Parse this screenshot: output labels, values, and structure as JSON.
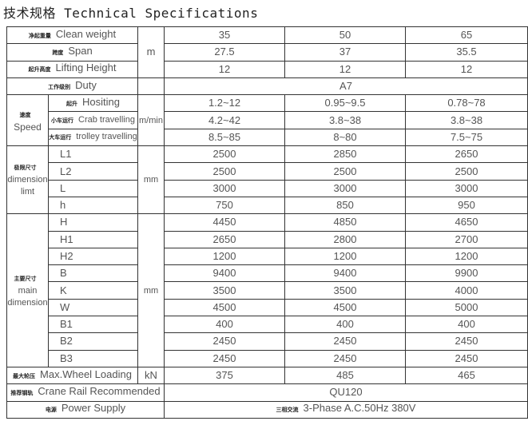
{
  "title": "技术规格 Technical Specifications",
  "cols": [
    "35",
    "50",
    "65"
  ],
  "rows": {
    "clean_weight": {
      "cn": "净起重量",
      "en": "Clean weight",
      "unit": "m",
      "v": [
        "35",
        "50",
        "65"
      ]
    },
    "span": {
      "cn": "跨度",
      "en": "Span",
      "v": [
        "27.5",
        "37",
        "35.5"
      ]
    },
    "lifting_height": {
      "cn": "起升高度",
      "en": "Lifting Height",
      "v": [
        "12",
        "12",
        "12"
      ]
    },
    "duty": {
      "cn": "工作级别",
      "en": "Duty",
      "v": "A7"
    },
    "speed": {
      "cn": "速度",
      "en": "Speed",
      "unit": "m/min",
      "items": [
        {
          "cn": "起升",
          "en": "Hositing",
          "v": [
            "1.2~12",
            "0.95~9.5",
            "0.78~78"
          ]
        },
        {
          "cn": "小车运行",
          "en": "Crab travelling",
          "v": [
            "4.2~42",
            "3.8~38",
            "3.8~38"
          ]
        },
        {
          "cn": "大车运行",
          "en": "trolley travelling",
          "v": [
            "8.5~85",
            "8~80",
            "7.5~75"
          ]
        }
      ]
    },
    "dim_limit": {
      "cn": "极限尺寸",
      "en1": "dimension",
      "en2": "limt",
      "unit": "mm",
      "items": [
        {
          "en": "L1",
          "v": [
            "2500",
            "2850",
            "2650"
          ]
        },
        {
          "en": "L2",
          "v": [
            "2500",
            "2500",
            "2500"
          ]
        },
        {
          "en": "L",
          "v": [
            "3000",
            "3000",
            "3000"
          ]
        },
        {
          "en": "h",
          "v": [
            "750",
            "850",
            "950"
          ]
        }
      ]
    },
    "main_dim": {
      "cn": "主要尺寸",
      "en1": "main",
      "en2": "dimension",
      "unit": "mm",
      "items": [
        {
          "en": "H",
          "v": [
            "4450",
            "4850",
            "4650"
          ]
        },
        {
          "en": "H1",
          "v": [
            "2650",
            "2800",
            "2700"
          ]
        },
        {
          "en": "H2",
          "v": [
            "1200",
            "1200",
            "1200"
          ]
        },
        {
          "en": "B",
          "v": [
            "9400",
            "9400",
            "9900"
          ]
        },
        {
          "en": "K",
          "v": [
            "3500",
            "3500",
            "4000"
          ]
        },
        {
          "en": "W",
          "v": [
            "4500",
            "4500",
            "5000"
          ]
        },
        {
          "en": "B1",
          "v": [
            "400",
            "400",
            "400"
          ]
        },
        {
          "en": "B2",
          "v": [
            "2450",
            "2450",
            "2450"
          ]
        },
        {
          "en": "B3",
          "v": [
            "2450",
            "2450",
            "2450"
          ]
        }
      ]
    },
    "wheel": {
      "cn": "最大轮压",
      "en": "Max.Wheel Loading",
      "unit": "kN",
      "v": [
        "375",
        "485",
        "465"
      ]
    },
    "rail": {
      "cn": "推荐钢轨",
      "en": "Crane Rail Recommended",
      "v": "QU120"
    },
    "power": {
      "cn": "电源",
      "en": "Power Supply",
      "vcn": "三相交流",
      "v": "3-Phase A.C.50Hz 380V"
    }
  }
}
